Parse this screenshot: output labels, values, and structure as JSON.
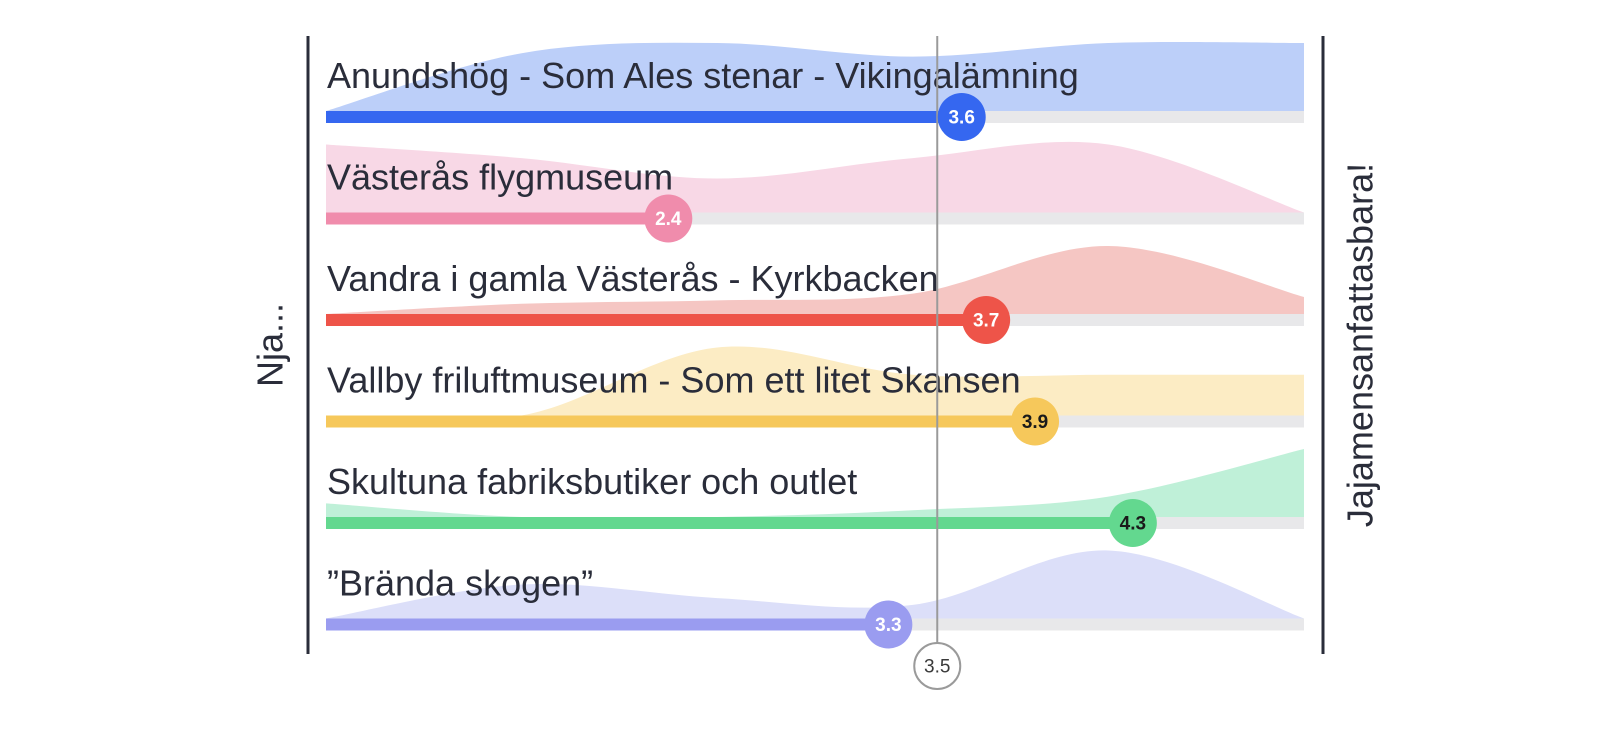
{
  "chart_data": {
    "type": "bar",
    "title": "",
    "x_range": [
      1,
      5
    ],
    "axis_left_label": "Nja...",
    "axis_right_label": "Jajamensanfattasbara!",
    "reference_line": {
      "value": 3.5,
      "label": "3.5"
    },
    "categories": [
      "Anundshög - Som Ales stenar - Vikingalämning",
      "Västerås flygmuseum",
      "Vandra i gamla Västerås - Kyrkbacken",
      "Vallby friluftmuseum - Som ett litet Skansen",
      "Skultuna fabriksbutiker och outlet",
      "”Brända skogen”"
    ],
    "values": [
      3.6,
      2.4,
      3.7,
      3.9,
      4.3,
      3.3
    ],
    "value_labels": [
      "3.6",
      "2.4",
      "3.7",
      "3.9",
      "4.3",
      "3.3"
    ],
    "colors": [
      "#3567f0",
      "#f08cac",
      "#ee5449",
      "#f6c85b",
      "#63d88f",
      "#9a9cf0"
    ],
    "area_colors": [
      "#bccff9",
      "#f8d8e6",
      "#f5c6c3",
      "#fcecc4",
      "#bff0d8",
      "#dcdff9"
    ],
    "value_label_colors": [
      "#ffffff",
      "#ffffff",
      "#ffffff",
      "#1a1a1a",
      "#1a1a1a",
      "#ffffff"
    ],
    "distributions": [
      [
        0.0,
        0.85,
        1.0,
        0.8,
        1.0,
        1.0
      ],
      [
        1.0,
        0.8,
        0.5,
        0.8,
        1.0,
        0.0
      ],
      [
        0.0,
        0.15,
        0.2,
        0.3,
        1.0,
        0.25
      ],
      [
        0.0,
        0.0,
        1.0,
        0.6,
        0.6,
        0.6
      ],
      [
        0.2,
        0.0,
        0.0,
        0.1,
        0.3,
        1.0
      ],
      [
        0.0,
        0.5,
        0.3,
        0.2,
        1.0,
        0.0
      ]
    ],
    "grid": false,
    "legend": "none"
  }
}
